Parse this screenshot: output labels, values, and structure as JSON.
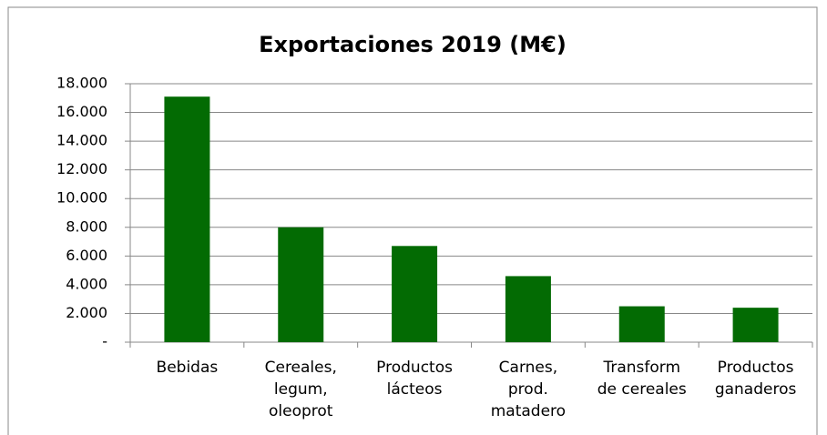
{
  "chart_data": {
    "type": "bar",
    "title": "Exportaciones 2019 (M€)",
    "categories": [
      "Bebidas",
      "Cereales,\nlegum,\noleoprot",
      "Productos\nlácteos",
      "Carnes,\nprod.\nmatadero",
      "Transform\nde cereales",
      "Productos\nganaderos"
    ],
    "values": [
      17100,
      8000,
      6700,
      4600,
      2500,
      2400
    ],
    "color": "#036b03",
    "ylim": [
      0,
      18000
    ],
    "yticks": [
      {
        "value": 0,
        "label": "-"
      },
      {
        "value": 2000,
        "label": "2.000"
      },
      {
        "value": 4000,
        "label": "4.000"
      },
      {
        "value": 6000,
        "label": "6.000"
      },
      {
        "value": 8000,
        "label": "8.000"
      },
      {
        "value": 10000,
        "label": "10.000"
      },
      {
        "value": 12000,
        "label": "12.000"
      },
      {
        "value": 14000,
        "label": "14.000"
      },
      {
        "value": 16000,
        "label": "16.000"
      },
      {
        "value": 18000,
        "label": "18.000"
      }
    ],
    "grid": true
  }
}
